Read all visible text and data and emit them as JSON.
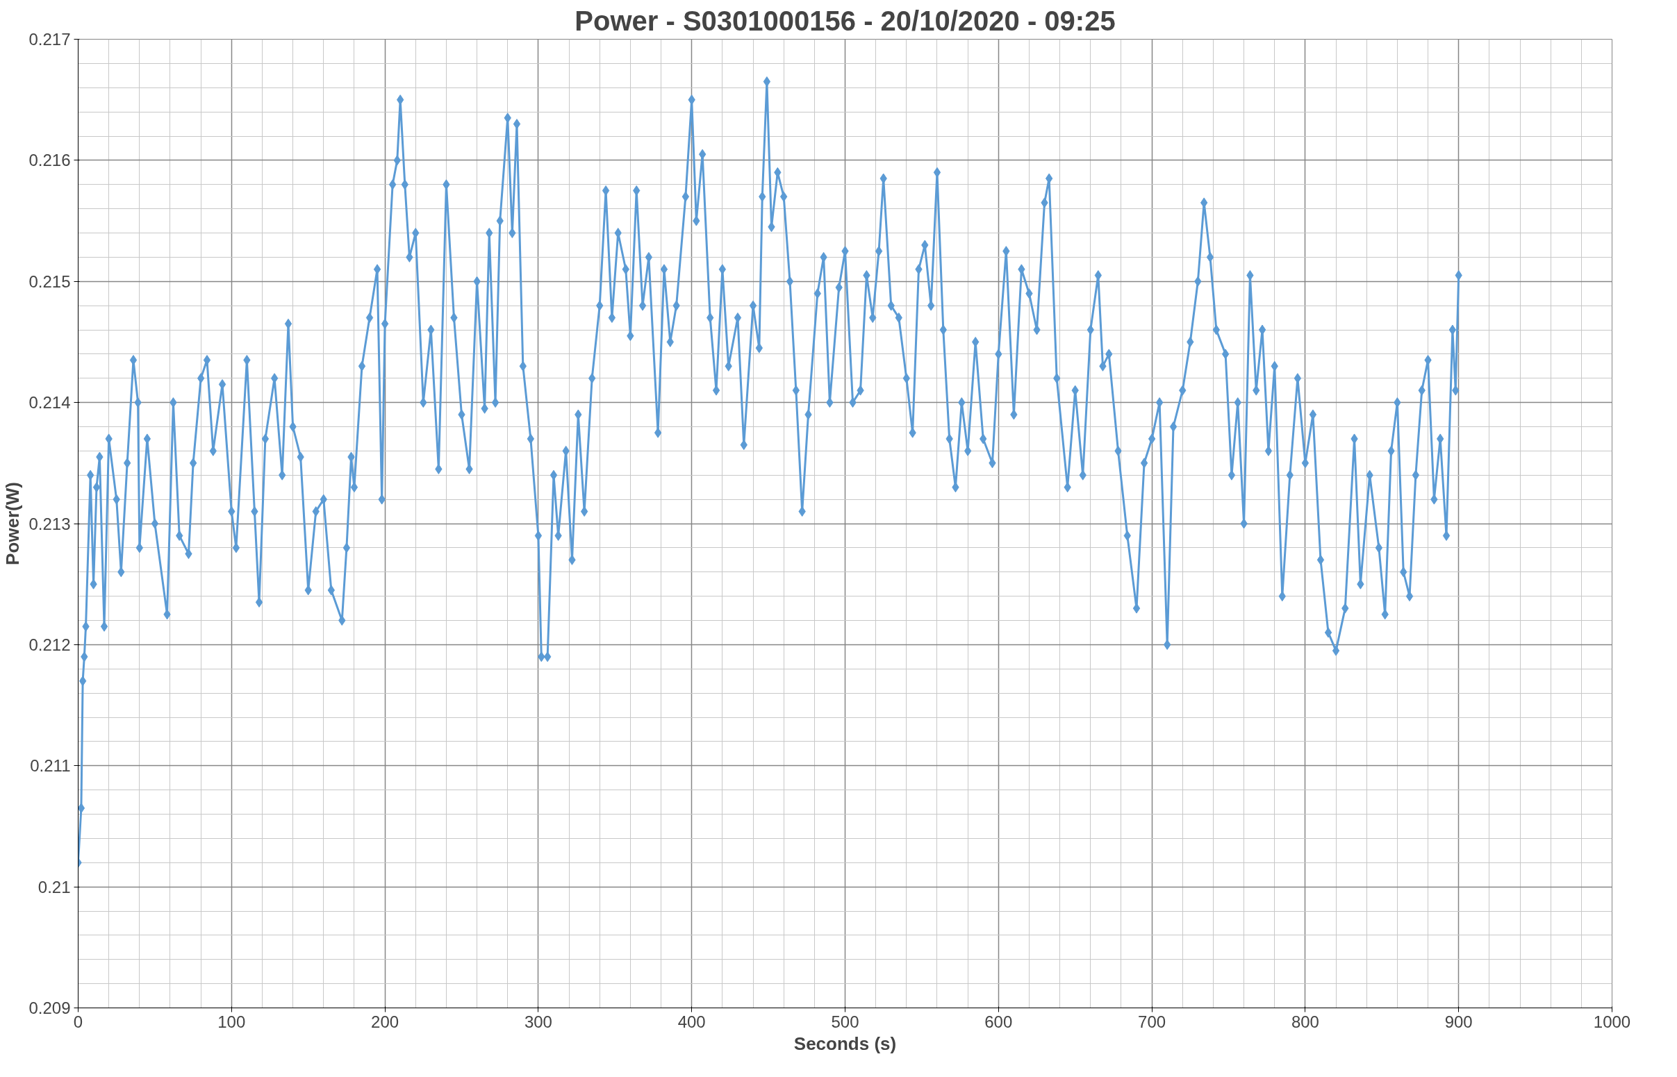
{
  "chart_data": {
    "type": "line",
    "title": "Power - S0301000156 - 20/10/2020 - 09:25",
    "xlabel": "Seconds (s)",
    "ylabel": "Power(W)",
    "xlim": [
      0,
      1000
    ],
    "xticks": [
      0,
      100,
      200,
      300,
      400,
      500,
      600,
      700,
      800,
      900,
      1000
    ],
    "ylim": [
      0.209,
      0.217
    ],
    "yticks": [
      0.209,
      0.21,
      0.211,
      0.212,
      0.213,
      0.214,
      0.215,
      0.216,
      0.217
    ],
    "grid": true,
    "marker": "diamond",
    "line_style": "solid",
    "series": [
      {
        "color": "#5b9bd5",
        "x": [
          0,
          2,
          3,
          4,
          5,
          8,
          10,
          12,
          14,
          17,
          20,
          25,
          28,
          32,
          36,
          39,
          40,
          45,
          50,
          58,
          62,
          66,
          72,
          75,
          80,
          84,
          88,
          94,
          100,
          103,
          110,
          115,
          118,
          122,
          128,
          133,
          137,
          140,
          145,
          150,
          155,
          160,
          165,
          172,
          175,
          178,
          180,
          185,
          190,
          195,
          198,
          200,
          205,
          208,
          210,
          213,
          216,
          220,
          225,
          230,
          235,
          240,
          245,
          250,
          255,
          260,
          265,
          268,
          272,
          275,
          280,
          283,
          286,
          290,
          295,
          300,
          302,
          306,
          310,
          313,
          318,
          322,
          326,
          330,
          335,
          340,
          344,
          348,
          352,
          357,
          360,
          364,
          368,
          372,
          378,
          382,
          386,
          390,
          396,
          400,
          403,
          407,
          412,
          416,
          420,
          424,
          430,
          434,
          440,
          444,
          446,
          449,
          452,
          456,
          460,
          464,
          468,
          472,
          476,
          482,
          486,
          490,
          496,
          500,
          505,
          510,
          514,
          518,
          522,
          525,
          530,
          535,
          540,
          544,
          548,
          552,
          556,
          560,
          564,
          568,
          572,
          576,
          580,
          585,
          590,
          596,
          600,
          605,
          610,
          615,
          620,
          625,
          630,
          633,
          638,
          645,
          650,
          655,
          660,
          665,
          668,
          672,
          678,
          684,
          690,
          695,
          700,
          705,
          710,
          714,
          720,
          725,
          730,
          734,
          738,
          742,
          748,
          752,
          756,
          760,
          764,
          768,
          772,
          776,
          780,
          785,
          790,
          795,
          800,
          805,
          810,
          815,
          820,
          826,
          832,
          836,
          842,
          848,
          852,
          856,
          860,
          864,
          868,
          872,
          876,
          880,
          884,
          888,
          892,
          896,
          898,
          900
        ],
        "values": [
          0.2102,
          0.21065,
          0.2117,
          0.2119,
          0.21215,
          0.2134,
          0.2125,
          0.2133,
          0.21355,
          0.21215,
          0.2137,
          0.2132,
          0.2126,
          0.2135,
          0.21435,
          0.214,
          0.2128,
          0.2137,
          0.213,
          0.21225,
          0.214,
          0.2129,
          0.21275,
          0.2135,
          0.2142,
          0.21435,
          0.2136,
          0.21415,
          0.2131,
          0.2128,
          0.21435,
          0.2131,
          0.21235,
          0.2137,
          0.2142,
          0.2134,
          0.21465,
          0.2138,
          0.21355,
          0.21245,
          0.2131,
          0.2132,
          0.21245,
          0.2122,
          0.2128,
          0.21355,
          0.2133,
          0.2143,
          0.2147,
          0.2151,
          0.2132,
          0.21465,
          0.2158,
          0.216,
          0.2165,
          0.2158,
          0.2152,
          0.2154,
          0.214,
          0.2146,
          0.21345,
          0.2158,
          0.2147,
          0.2139,
          0.21345,
          0.215,
          0.21395,
          0.2154,
          0.214,
          0.2155,
          0.21635,
          0.2154,
          0.2163,
          0.2143,
          0.2137,
          0.2129,
          0.2119,
          0.2119,
          0.2134,
          0.2129,
          0.2136,
          0.2127,
          0.2139,
          0.2131,
          0.2142,
          0.2148,
          0.21575,
          0.2147,
          0.2154,
          0.2151,
          0.21455,
          0.21575,
          0.2148,
          0.2152,
          0.21375,
          0.2151,
          0.2145,
          0.2148,
          0.2157,
          0.2165,
          0.2155,
          0.21605,
          0.2147,
          0.2141,
          0.2151,
          0.2143,
          0.2147,
          0.21365,
          0.2148,
          0.21445,
          0.2157,
          0.21665,
          0.21545,
          0.2159,
          0.2157,
          0.215,
          0.2141,
          0.2131,
          0.2139,
          0.2149,
          0.2152,
          0.214,
          0.21495,
          0.21525,
          0.214,
          0.2141,
          0.21505,
          0.2147,
          0.21525,
          0.21585,
          0.2148,
          0.2147,
          0.2142,
          0.21375,
          0.2151,
          0.2153,
          0.2148,
          0.2159,
          0.2146,
          0.2137,
          0.2133,
          0.214,
          0.2136,
          0.2145,
          0.2137,
          0.2135,
          0.2144,
          0.21525,
          0.2139,
          0.2151,
          0.2149,
          0.2146,
          0.21565,
          0.21585,
          0.2142,
          0.2133,
          0.2141,
          0.2134,
          0.2146,
          0.21505,
          0.2143,
          0.2144,
          0.2136,
          0.2129,
          0.2123,
          0.2135,
          0.2137,
          0.214,
          0.212,
          0.2138,
          0.2141,
          0.2145,
          0.215,
          0.21565,
          0.2152,
          0.2146,
          0.2144,
          0.2134,
          0.214,
          0.213,
          0.21505,
          0.2141,
          0.2146,
          0.2136,
          0.2143,
          0.2124,
          0.2134,
          0.2142,
          0.2135,
          0.2139,
          0.2127,
          0.2121,
          0.21195,
          0.2123,
          0.2137,
          0.2125,
          0.2134,
          0.2128,
          0.21225,
          0.2136,
          0.214,
          0.2126,
          0.2124,
          0.2134,
          0.2141,
          0.21435,
          0.2132,
          0.2137,
          0.2129,
          0.2146,
          0.2141,
          0.21505
        ]
      }
    ]
  }
}
